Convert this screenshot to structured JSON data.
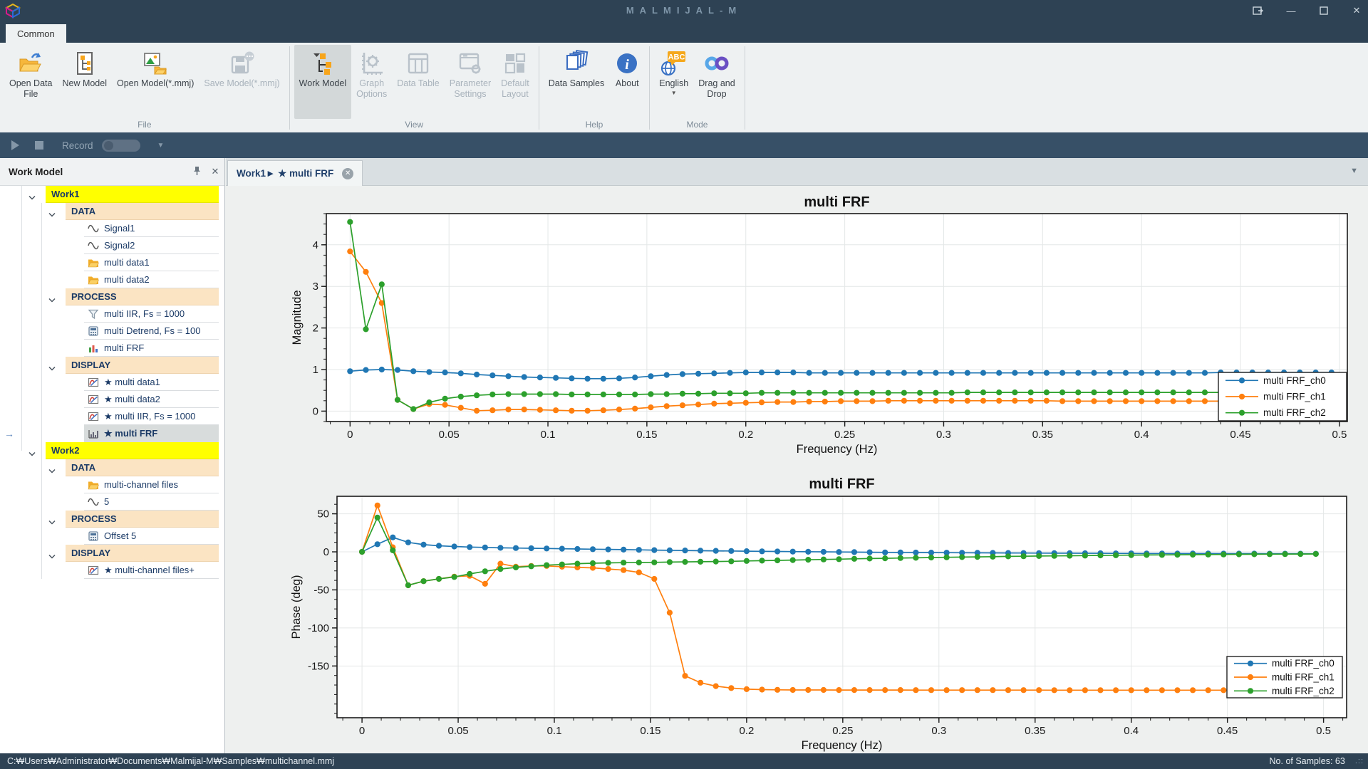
{
  "window": {
    "title": "MALMIJAL-M"
  },
  "ribbon": {
    "tab": "Common",
    "groups": [
      {
        "label": "File",
        "buttons": [
          {
            "label": "Open Data\nFile",
            "icon": "open-data-file",
            "enabled": true
          },
          {
            "label": "New Model",
            "icon": "new-model",
            "enabled": true
          },
          {
            "label": "Open Model(*.mmj)",
            "icon": "open-model",
            "enabled": true
          },
          {
            "label": "Save Model(*.mmj)",
            "icon": "save-model",
            "enabled": false
          }
        ]
      },
      {
        "label": "View",
        "buttons": [
          {
            "label": "Work Model",
            "icon": "work-model",
            "enabled": true,
            "active": true
          },
          {
            "label": "Graph\nOptions",
            "icon": "graph-options",
            "enabled": false
          },
          {
            "label": "Data Table",
            "icon": "data-table",
            "enabled": false
          },
          {
            "label": "Parameter\nSettings",
            "icon": "parameter-settings",
            "enabled": false
          },
          {
            "label": "Default\nLayout",
            "icon": "default-layout",
            "enabled": false
          }
        ]
      },
      {
        "label": "Help",
        "buttons": [
          {
            "label": "Data Samples",
            "icon": "data-samples",
            "enabled": true
          },
          {
            "label": "About",
            "icon": "about",
            "enabled": true
          }
        ]
      },
      {
        "label": "Mode",
        "buttons": [
          {
            "label": "English",
            "icon": "english",
            "enabled": true,
            "dropdown": true
          },
          {
            "label": "Drag and\nDrop",
            "icon": "drag-drop",
            "enabled": true
          }
        ]
      }
    ]
  },
  "record_bar": {
    "label": "Record"
  },
  "sidebar": {
    "title": "Work Model",
    "tree": [
      {
        "t": "work",
        "label": "Work1"
      },
      {
        "t": "group",
        "label": "DATA"
      },
      {
        "t": "item",
        "icon": "sine",
        "label": "Signal1"
      },
      {
        "t": "item",
        "icon": "sine",
        "label": "Signal2"
      },
      {
        "t": "item",
        "icon": "folder",
        "label": "multi data1"
      },
      {
        "t": "item",
        "icon": "folder",
        "label": "multi data2"
      },
      {
        "t": "group",
        "label": "PROCESS"
      },
      {
        "t": "item",
        "icon": "funnel",
        "label": "multi IIR, Fs = 1000"
      },
      {
        "t": "item",
        "icon": "calc",
        "label": "multi Detrend, Fs = 100"
      },
      {
        "t": "item",
        "icon": "bars",
        "label": "multi FRF"
      },
      {
        "t": "group",
        "label": "DISPLAY"
      },
      {
        "t": "item",
        "icon": "curve",
        "label": "★ multi data1"
      },
      {
        "t": "item",
        "icon": "curve",
        "label": "★ multi data2"
      },
      {
        "t": "item",
        "icon": "curve",
        "label": "★ multi IIR, Fs = 1000"
      },
      {
        "t": "item",
        "icon": "hist",
        "label": "★ multi FRF",
        "selected": true
      },
      {
        "t": "work",
        "label": "Work2"
      },
      {
        "t": "group",
        "label": "DATA"
      },
      {
        "t": "item",
        "icon": "folder",
        "label": "multi-channel files"
      },
      {
        "t": "item",
        "icon": "sine",
        "label": "5"
      },
      {
        "t": "group",
        "label": "PROCESS"
      },
      {
        "t": "item",
        "icon": "calc",
        "label": "Offset 5"
      },
      {
        "t": "group",
        "label": "DISPLAY"
      },
      {
        "t": "item",
        "icon": "curve",
        "label": "★ multi-channel files+"
      }
    ]
  },
  "tabs": {
    "active_label": "Work1► ★ multi FRF"
  },
  "status_bar": {
    "path": "C:₩Users₩Administrator₩Documents₩Malmijal-M₩Samples₩multichannel.mmj",
    "samples": "No. of Samples: 63"
  },
  "chart_data": [
    {
      "type": "line",
      "title": "multi FRF",
      "xlabel": "Frequency (Hz)",
      "ylabel": "Magnitude",
      "xlim": [
        -0.012,
        0.504
      ],
      "ylim": [
        -0.25,
        4.75
      ],
      "xticks": [
        0,
        0.05,
        0.1,
        0.15,
        0.2,
        0.25,
        0.3,
        0.35,
        0.4,
        0.45,
        0.5
      ],
      "yticks": [
        0,
        1,
        2,
        3,
        4
      ],
      "x_minor": 0.01,
      "y_minor": 0.25,
      "grid": true,
      "legend_position": "inside-right-bottom",
      "x_start": 0,
      "x_step": 0.008,
      "n_points": 63,
      "series": [
        {
          "name": "multi FRF_ch0",
          "color": "#2077b4",
          "values": [
            0.96,
            0.99,
            1.0,
            0.99,
            0.96,
            0.94,
            0.93,
            0.91,
            0.88,
            0.86,
            0.84,
            0.82,
            0.81,
            0.8,
            0.79,
            0.78,
            0.78,
            0.79,
            0.81,
            0.84,
            0.87,
            0.89,
            0.9,
            0.91,
            0.92,
            0.93,
            0.93,
            0.93,
            0.93,
            0.92,
            0.92,
            0.92,
            0.92,
            0.92,
            0.92,
            0.92,
            0.92,
            0.92,
            0.92,
            0.92,
            0.92,
            0.92,
            0.92,
            0.92,
            0.92,
            0.92,
            0.92,
            0.92,
            0.92,
            0.92,
            0.92,
            0.92,
            0.92,
            0.92,
            0.92,
            0.93,
            0.93,
            0.93,
            0.93,
            0.93,
            0.93,
            0.93,
            0.93
          ]
        },
        {
          "name": "multi FRF_ch1",
          "color": "#ff7f0e",
          "values": [
            3.84,
            3.35,
            2.6,
            0.27,
            0.05,
            0.17,
            0.15,
            0.08,
            0.01,
            0.02,
            0.04,
            0.04,
            0.03,
            0.02,
            0.01,
            0.01,
            0.02,
            0.04,
            0.06,
            0.09,
            0.12,
            0.14,
            0.16,
            0.18,
            0.19,
            0.2,
            0.21,
            0.22,
            0.22,
            0.23,
            0.23,
            0.24,
            0.24,
            0.24,
            0.25,
            0.25,
            0.25,
            0.25,
            0.25,
            0.25,
            0.25,
            0.25,
            0.25,
            0.25,
            0.25,
            0.24,
            0.24,
            0.24,
            0.24,
            0.24,
            0.24,
            0.24,
            0.24,
            0.24,
            0.24,
            0.24,
            0.24,
            0.24,
            0.24,
            0.24,
            0.24,
            0.24,
            0.24
          ]
        },
        {
          "name": "multi FRF_ch2",
          "color": "#2ca02c",
          "values": [
            4.55,
            1.97,
            3.05,
            0.27,
            0.05,
            0.21,
            0.3,
            0.35,
            0.38,
            0.4,
            0.41,
            0.41,
            0.41,
            0.41,
            0.4,
            0.4,
            0.4,
            0.4,
            0.4,
            0.41,
            0.41,
            0.42,
            0.42,
            0.43,
            0.43,
            0.43,
            0.44,
            0.44,
            0.44,
            0.44,
            0.44,
            0.44,
            0.44,
            0.44,
            0.44,
            0.44,
            0.44,
            0.44,
            0.44,
            0.45,
            0.45,
            0.45,
            0.45,
            0.45,
            0.45,
            0.45,
            0.45,
            0.45,
            0.45,
            0.45,
            0.45,
            0.45,
            0.45,
            0.45,
            0.45,
            0.45,
            0.46,
            0.46,
            0.46,
            0.46,
            0.46,
            0.46,
            0.46
          ]
        }
      ]
    },
    {
      "type": "line",
      "title": "multi FRF",
      "xlabel": "Frequency (Hz)",
      "ylabel": "Phase (deg)",
      "xlim": [
        -0.013,
        0.512
      ],
      "ylim": [
        -218,
        73
      ],
      "xticks": [
        0,
        0.05,
        0.1,
        0.15,
        0.2,
        0.25,
        0.3,
        0.35,
        0.4,
        0.45,
        0.5
      ],
      "yticks": [
        50,
        0,
        -50,
        -100,
        -150
      ],
      "x_minor": 0.01,
      "y_minor": 12.5,
      "grid": true,
      "legend_position": "inside-right-bottom",
      "x_start": 0,
      "x_step": 0.008,
      "n_points": 63,
      "series": [
        {
          "name": "multi FRF_ch0",
          "color": "#2077b4",
          "values": [
            0,
            10,
            19,
            12.5,
            9.5,
            8,
            7,
            6.3,
            5.8,
            5.3,
            5,
            4.7,
            4.4,
            4.1,
            3.8,
            3.5,
            3.2,
            2.9,
            2.6,
            2.3,
            2,
            1.8,
            1.5,
            1.3,
            1.1,
            0.9,
            0.7,
            0.5,
            0.3,
            0.1,
            0,
            -0.2,
            -0.4,
            -0.5,
            -0.7,
            -0.8,
            -0.9,
            -1,
            -1.1,
            -1.2,
            -1.3,
            -1.4,
            -1.5,
            -1.6,
            -1.7,
            -1.8,
            -1.8,
            -1.9,
            -1.9,
            -2,
            -2,
            -2.1,
            -2.1,
            -2.2,
            -2.2,
            -2.2,
            -2.3,
            -2.3,
            -2.3,
            -2.4,
            -2.4,
            -2.4,
            -2.5
          ]
        },
        {
          "name": "multi FRF_ch1",
          "color": "#ff7f0e",
          "values": [
            0,
            61,
            6,
            -44,
            -38.5,
            -35.5,
            -32.5,
            -31.5,
            -42,
            -15.5,
            -19.5,
            -18.5,
            -18.5,
            -19.5,
            -20.5,
            -21,
            -22.5,
            -24,
            -27,
            -35.5,
            -80,
            -163,
            -172,
            -176.5,
            -179,
            -180.5,
            -181,
            -181.3,
            -181.5,
            -181.5,
            -181.5,
            -181.6,
            -181.6,
            -181.6,
            -181.6,
            -181.6,
            -181.7,
            -181.7,
            -181.7,
            -181.7,
            -181.7,
            -181.7,
            -181.7,
            -181.7,
            -181.7,
            -181.8,
            -181.8,
            -181.8,
            -181.8,
            -181.8,
            -181.8,
            -181.8,
            -181.8,
            -181.8,
            -181.8,
            -181.8,
            -181.8,
            -181.8,
            -181.8,
            -181.8,
            -181.8,
            -181.8,
            -181.8
          ]
        },
        {
          "name": "multi FRF_ch2",
          "color": "#2ca02c",
          "values": [
            0,
            45,
            2,
            -44,
            -38.5,
            -35.5,
            -33,
            -29,
            -25.5,
            -22.5,
            -20.5,
            -19,
            -17.5,
            -16.5,
            -15.5,
            -15,
            -14.5,
            -14.2,
            -14,
            -13.8,
            -13.5,
            -13.2,
            -13,
            -12.7,
            -12.4,
            -12,
            -11.6,
            -11.2,
            -10.8,
            -10.4,
            -10,
            -9.6,
            -9.2,
            -8.8,
            -8.5,
            -8.1,
            -7.8,
            -7.5,
            -7.2,
            -6.9,
            -6.6,
            -6.3,
            -6,
            -5.8,
            -5.5,
            -5.3,
            -5.1,
            -4.9,
            -4.7,
            -4.5,
            -4.3,
            -4.1,
            -4,
            -3.8,
            -3.7,
            -3.5,
            -3.4,
            -3.3,
            -3.2,
            -3.1,
            -3,
            -2.9,
            -2.8
          ]
        }
      ]
    }
  ]
}
